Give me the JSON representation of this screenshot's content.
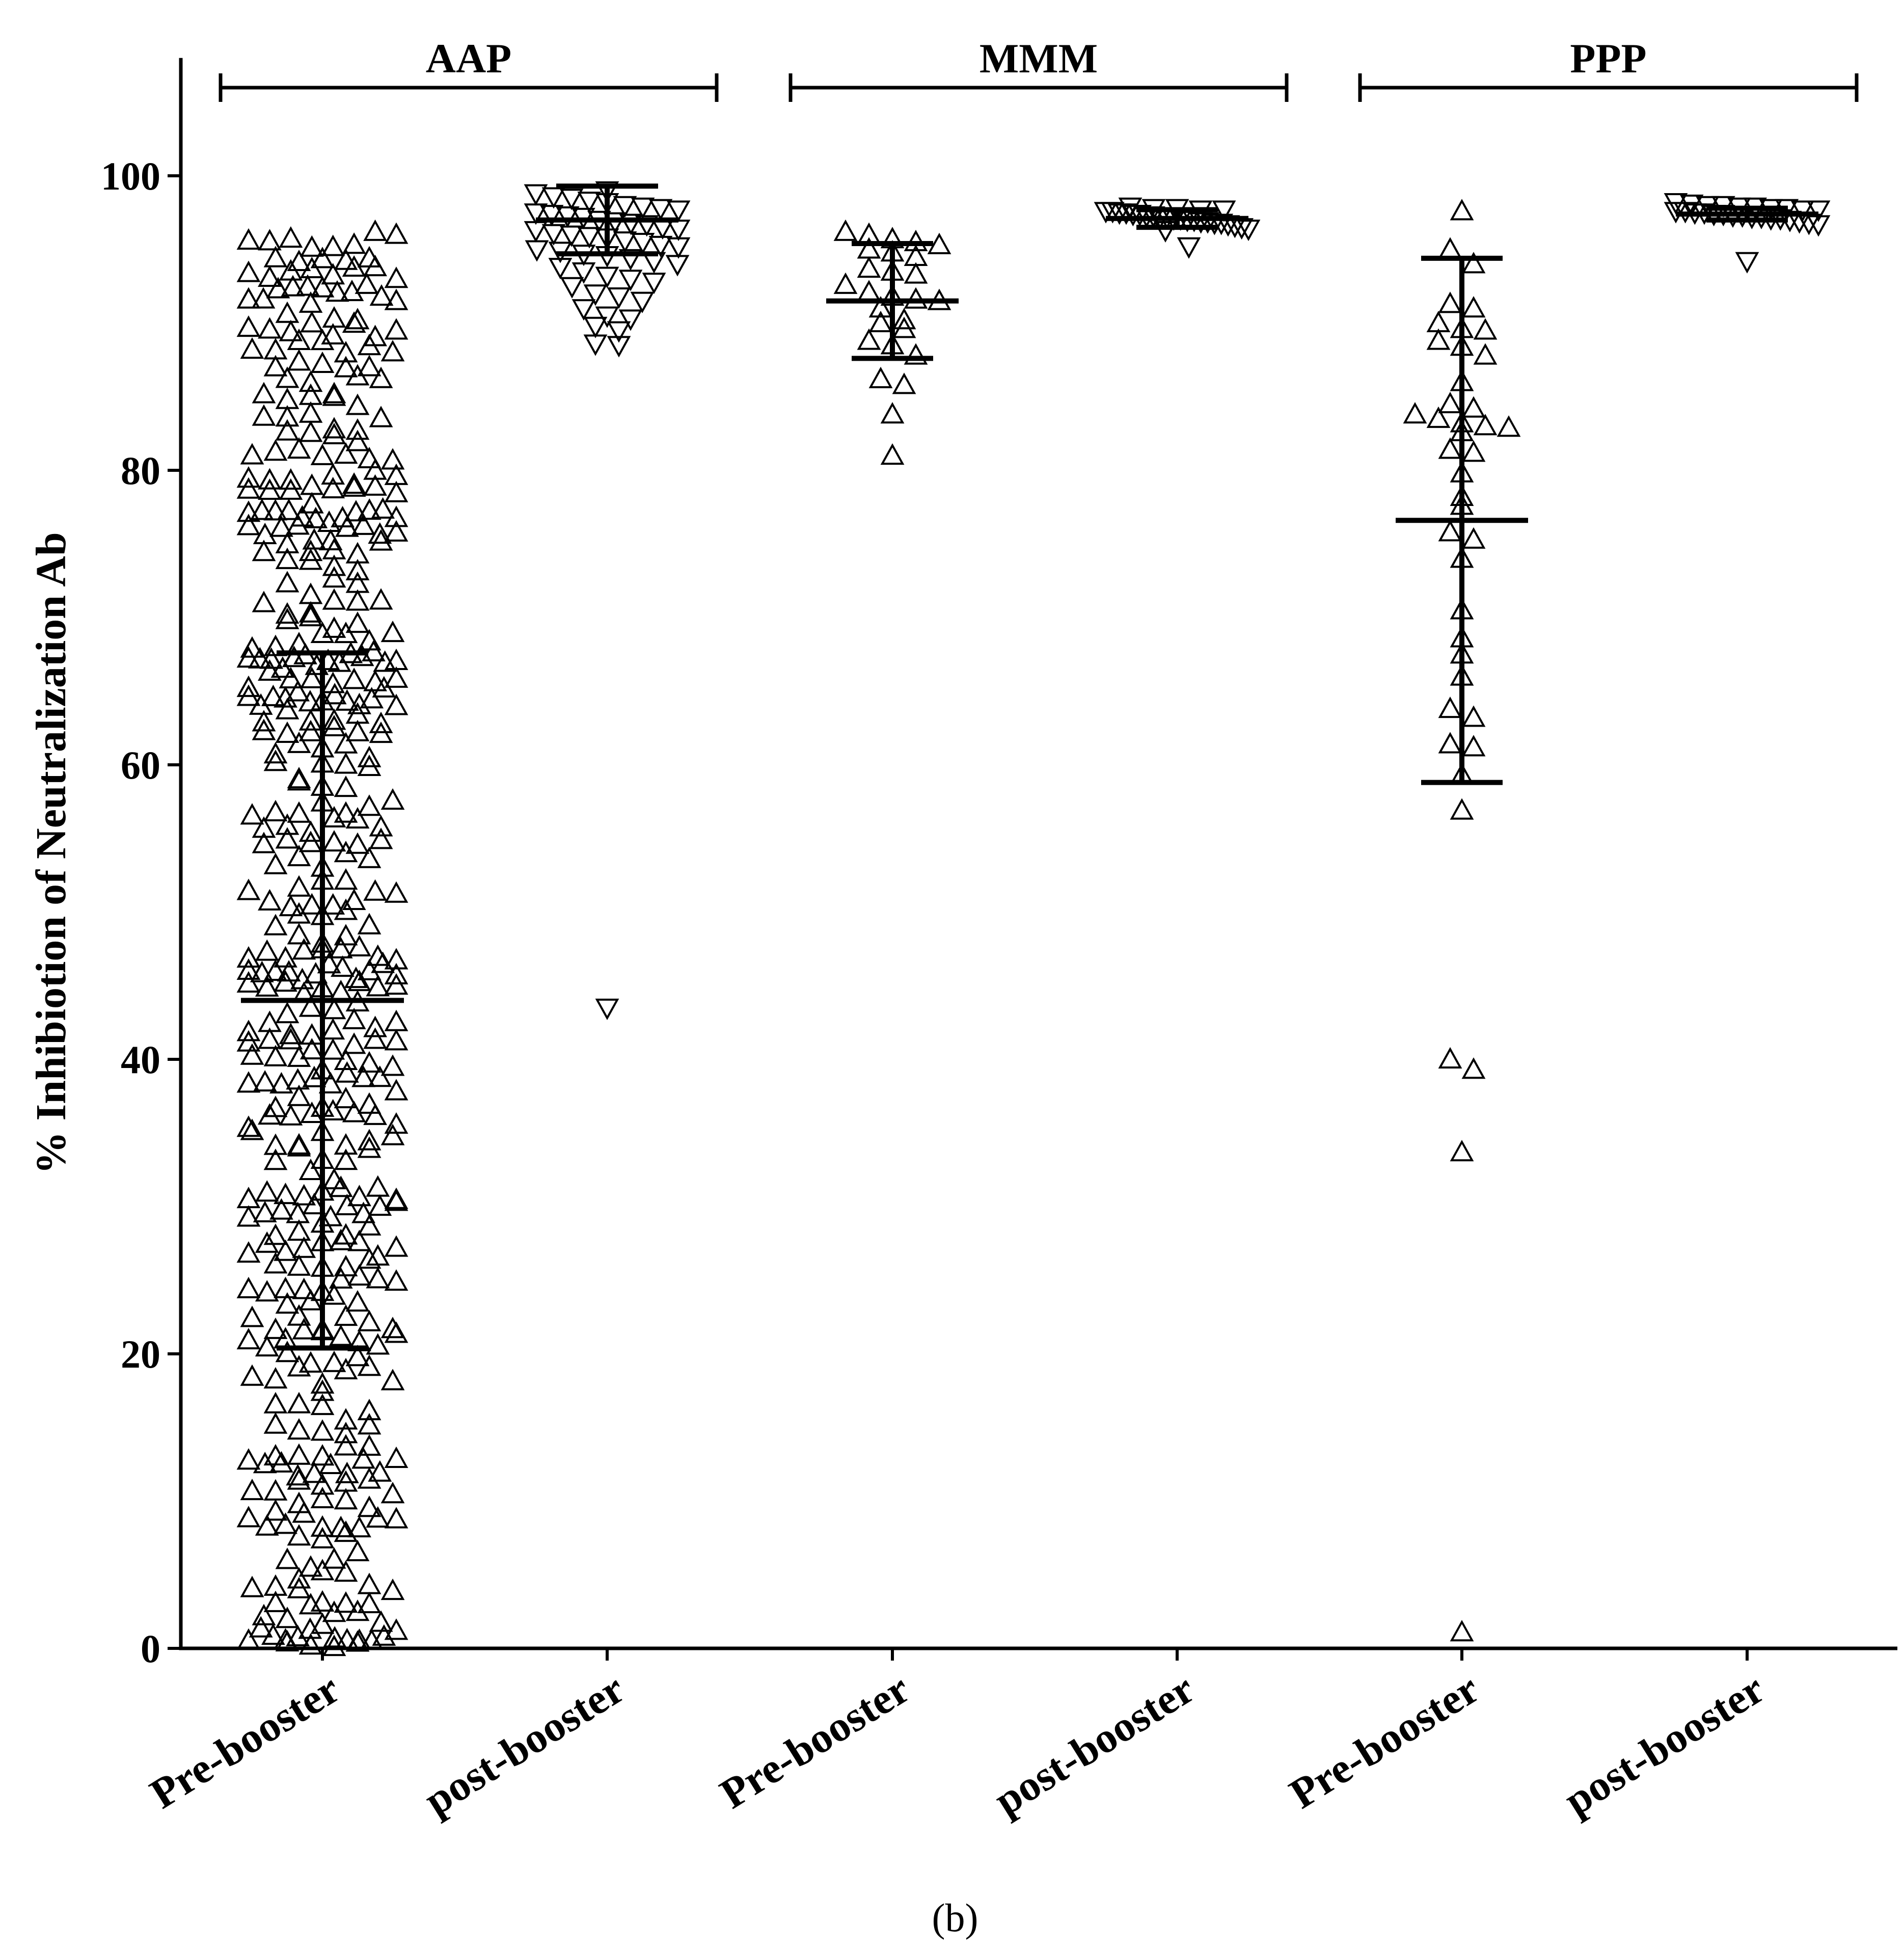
{
  "caption": "(b)",
  "chart_data": {
    "type": "scatter",
    "ylabel": "% Inhibiotion of Neutralization Ab",
    "xlabel": "",
    "ylim": [
      0,
      108
    ],
    "yticks": [
      0,
      20,
      40,
      60,
      80,
      100
    ],
    "categories": [
      "Pre-booster",
      "post-booster",
      "Pre-booster",
      "post-booster",
      "Pre-booster",
      "post-booster"
    ],
    "groups": [
      {
        "label": "AAP",
        "categories": [
          0,
          1
        ]
      },
      {
        "label": "MMM",
        "categories": [
          2,
          3
        ]
      },
      {
        "label": "PPP",
        "categories": [
          4,
          5
        ]
      }
    ],
    "series": [
      {
        "name": "Pre-booster",
        "group": "AAP",
        "marker": "triangle-up",
        "mean": 44.0,
        "sd_low": 20.4,
        "sd_high": 67.6,
        "n_approx": 500,
        "points_extra": [
          96.2,
          96.0,
          94.4,
          93.8,
          93.0,
          92.6,
          91.8,
          91.5,
          90.2,
          89.5,
          0.2,
          0.5,
          0.8,
          0.1,
          1.2,
          0.4
        ]
      },
      {
        "name": "post-booster",
        "group": "AAP",
        "marker": "triangle-down",
        "mean": 97.0,
        "sd_low": 94.7,
        "sd_high": 99.3,
        "points": [
          99.0,
          98.8,
          98.6,
          98.5,
          98.3,
          98.2,
          98.0,
          97.9,
          97.8,
          97.7,
          97.5,
          97.4,
          97.3,
          97.2,
          97.0,
          96.9,
          96.8,
          96.7,
          96.5,
          96.4,
          96.3,
          96.1,
          96.0,
          95.9,
          95.8,
          95.6,
          95.5,
          95.3,
          95.2,
          95.0,
          94.9,
          94.7,
          94.6,
          94.4,
          94.2,
          94.0,
          93.8,
          93.5,
          93.2,
          93.0,
          92.8,
          92.5,
          92.0,
          91.8,
          91.5,
          91.0,
          90.5,
          90.3,
          89.8,
          89.5,
          88.6,
          88.5,
          43.5
        ]
      },
      {
        "name": "Pre-booster",
        "group": "MMM",
        "marker": "triangle-up",
        "mean": 91.5,
        "sd_low": 87.6,
        "sd_high": 95.4,
        "points": [
          96.2,
          96.0,
          95.7,
          95.5,
          95.3,
          95.0,
          94.8,
          94.5,
          93.7,
          93.5,
          93.3,
          92.6,
          92.1,
          91.8,
          91.6,
          91.5,
          91.0,
          90.2,
          90.0,
          89.6,
          88.8,
          88.5,
          87.8,
          86.2,
          85.8,
          83.8,
          81.0
        ]
      },
      {
        "name": "post-booster",
        "group": "MMM",
        "marker": "triangle-down",
        "mean": 97.1,
        "sd_low": 96.5,
        "sd_high": 97.7,
        "points": [
          97.9,
          97.8,
          97.8,
          97.7,
          97.7,
          97.6,
          97.6,
          97.5,
          97.5,
          97.4,
          97.4,
          97.3,
          97.3,
          97.2,
          97.2,
          97.1,
          97.1,
          97.0,
          97.0,
          96.9,
          96.9,
          96.8,
          96.8,
          96.7,
          96.6,
          96.5,
          96.4,
          96.3,
          95.2
        ]
      },
      {
        "name": "Pre-booster",
        "group": "PPP",
        "marker": "triangle-up",
        "mean": 76.6,
        "sd_low": 58.8,
        "sd_high": 94.4,
        "points": [
          97.6,
          95.0,
          94.0,
          91.3,
          91.0,
          90.0,
          89.6,
          89.5,
          88.8,
          88.4,
          87.8,
          86.0,
          84.5,
          84.2,
          83.8,
          83.5,
          83.2,
          83.0,
          82.9,
          82.6,
          81.4,
          81.2,
          79.8,
          78.2,
          77.6,
          75.8,
          75.3,
          74.0,
          70.5,
          68.6,
          67.5,
          66.0,
          63.8,
          63.2,
          61.4,
          61.2,
          59.3,
          56.9,
          40.0,
          39.3,
          33.7,
          1.1
        ]
      },
      {
        "name": "post-booster",
        "group": "PPP",
        "marker": "triangle-down",
        "mean": 97.4,
        "sd_low": 97.0,
        "sd_high": 97.8,
        "points": [
          98.2,
          98.1,
          98.0,
          98.0,
          97.9,
          97.9,
          97.8,
          97.8,
          97.7,
          97.7,
          97.6,
          97.6,
          97.5,
          97.5,
          97.4,
          97.4,
          97.3,
          97.3,
          97.2,
          97.2,
          97.1,
          97.1,
          97.0,
          96.9,
          96.8,
          96.7,
          94.2
        ]
      }
    ]
  }
}
